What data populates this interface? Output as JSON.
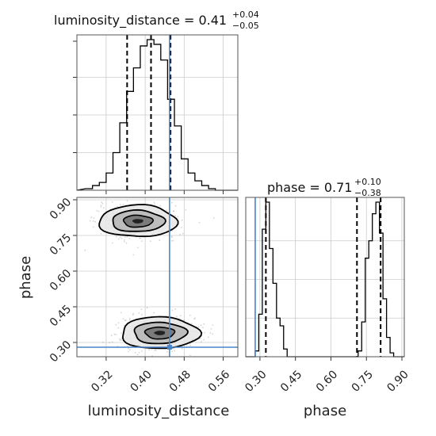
{
  "chart_data": {
    "type": "corner",
    "parameters": [
      "luminosity_distance",
      "phase"
    ],
    "titles": {
      "luminosity_distance": {
        "name": "luminosity_distance",
        "median": "0.41",
        "plus": "+0.04",
        "minus": "−0.05"
      },
      "phase": {
        "name": "phase",
        "median": "0.71",
        "plus": "+0.10",
        "minus": "−0.38"
      }
    },
    "xlabels": {
      "luminosity_distance": "luminosity_distance",
      "phase": "phase"
    },
    "ylabel": "phase",
    "luminosity_distance_axis": {
      "range": [
        0.26,
        0.59
      ],
      "ticks": [
        "0.32",
        "0.40",
        "0.48",
        "0.56"
      ]
    },
    "phase_axis": {
      "range": [
        0.24,
        0.91
      ],
      "ticks": [
        "0.30",
        "0.45",
        "0.60",
        "0.75",
        "0.90"
      ]
    },
    "truths": {
      "luminosity_distance": 0.45,
      "phase": 0.28
    },
    "quantile_lines": {
      "luminosity_distance": [
        0.363,
        0.412,
        0.452
      ],
      "phase": [
        0.325,
        0.71,
        0.81
      ]
    },
    "luminosity_distance_histogram": {
      "bin_edges": [
        0.278,
        0.292,
        0.306,
        0.32,
        0.334,
        0.348,
        0.362,
        0.376,
        0.39,
        0.404,
        0.418,
        0.432,
        0.446,
        0.46,
        0.474,
        0.488,
        0.502,
        0.516,
        0.53,
        0.544,
        0.558
      ],
      "counts": [
        1,
        3,
        5,
        11,
        24,
        43,
        63,
        78,
        92,
        96,
        93,
        83,
        58,
        41,
        20,
        11,
        6,
        3,
        1,
        0
      ]
    },
    "phase_histogram": {
      "bin_edges": [
        0.25,
        0.265,
        0.28,
        0.295,
        0.31,
        0.325,
        0.34,
        0.355,
        0.37,
        0.385,
        0.4,
        0.415,
        0.43,
        0.445,
        0.46,
        0.475,
        0.49,
        0.505,
        0.52,
        0.535,
        0.55,
        0.565,
        0.58,
        0.595,
        0.61,
        0.625,
        0.64,
        0.655,
        0.67,
        0.685,
        0.7,
        0.715,
        0.73,
        0.745,
        0.76,
        0.775,
        0.79,
        0.805,
        0.82,
        0.835,
        0.85,
        0.865,
        0.88,
        0.895,
        0.91
      ],
      "counts": [
        0,
        0,
        3,
        22,
        66,
        80,
        56,
        38,
        20,
        16,
        4,
        0,
        0,
        0,
        0,
        0,
        0,
        0,
        0,
        0,
        0,
        0,
        0,
        0,
        0,
        0,
        0,
        0,
        0,
        0,
        0,
        3,
        18,
        51,
        60,
        74,
        80,
        64,
        30,
        10,
        2,
        0,
        0,
        0
      ]
    },
    "density_modes": [
      {
        "luminosity_distance": 0.385,
        "phase": 0.81,
        "sigma_x": 0.04,
        "sigma_y": 0.035
      },
      {
        "luminosity_distance": 0.43,
        "phase": 0.34,
        "sigma_x": 0.04,
        "sigma_y": 0.035
      }
    ],
    "grid": true,
    "colors": {
      "histogram": "#000000",
      "truth": "#4a86c8",
      "quantile": "#000000",
      "grid": "#cccccc",
      "samples": "#888888"
    }
  }
}
